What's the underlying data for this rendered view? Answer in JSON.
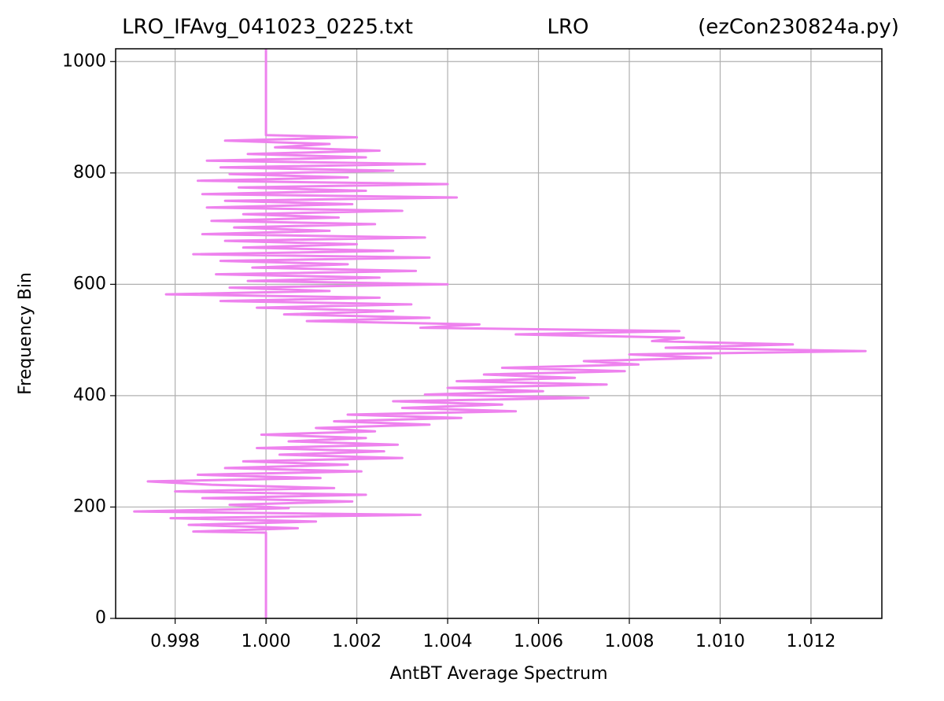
{
  "chart_data": {
    "type": "line",
    "orientation": "horizontal",
    "title_parts": [
      "LRO_IFAvg_041023_0225.txt",
      "LRO",
      "(ezCon230824a.py)"
    ],
    "xlabel": "AntBT Average Spectrum",
    "ylabel": "Frequency Bin",
    "xlim": [
      0.99669,
      1.01356
    ],
    "ylim": [
      0,
      1023
    ],
    "xticks": [
      0.998,
      {
        "value": 1.0,
        "label": "1.000"
      },
      1.002,
      1.004,
      1.006,
      1.008,
      {
        "value": 1.01,
        "label": "1.010"
      },
      1.012
    ],
    "yticks": [
      0,
      200,
      400,
      600,
      800,
      1000
    ],
    "grid": true,
    "y": [
      0,
      154,
      156,
      162,
      168,
      174,
      180,
      186,
      192,
      198,
      204,
      210,
      216,
      222,
      228,
      234,
      240,
      246,
      252,
      258,
      264,
      270,
      276,
      282,
      288,
      294,
      300,
      306,
      312,
      318,
      324,
      330,
      336,
      342,
      348,
      354,
      360,
      366,
      372,
      378,
      384,
      390,
      396,
      402,
      408,
      414,
      420,
      426,
      432,
      438,
      444,
      450,
      456,
      462,
      468,
      474,
      480,
      486,
      492,
      498,
      504,
      510,
      516,
      522,
      528,
      534,
      540,
      546,
      552,
      558,
      564,
      570,
      576,
      582,
      588,
      594,
      600,
      606,
      612,
      618,
      624,
      630,
      636,
      642,
      648,
      654,
      660,
      666,
      672,
      678,
      684,
      690,
      696,
      702,
      708,
      714,
      720,
      726,
      732,
      738,
      744,
      750,
      756,
      762,
      768,
      774,
      780,
      786,
      792,
      798,
      804,
      810,
      816,
      822,
      828,
      834,
      840,
      846,
      852,
      858,
      864,
      868,
      1023
    ],
    "series": [
      {
        "color": "#ee82ee",
        "values": [
          1.0,
          1.0,
          0.9984,
          1.0007,
          0.9983,
          1.0011,
          0.9979,
          1.0034,
          0.9971,
          1.0005,
          0.9992,
          1.0019,
          0.9986,
          1.0022,
          0.998,
          1.0015,
          0.9988,
          0.9974,
          1.0012,
          0.9985,
          1.0021,
          0.9991,
          1.0018,
          0.9995,
          1.003,
          1.0003,
          1.0026,
          0.9998,
          1.0029,
          1.0005,
          1.0022,
          0.9999,
          1.0024,
          1.0011,
          1.0036,
          1.0015,
          1.0043,
          1.0018,
          1.0055,
          1.003,
          1.0052,
          1.0028,
          1.0071,
          1.0035,
          1.0061,
          1.004,
          1.0075,
          1.0042,
          1.0068,
          1.0048,
          1.0079,
          1.0052,
          1.0082,
          1.007,
          1.0098,
          1.008,
          1.0132,
          1.0088,
          1.0116,
          1.0085,
          1.0092,
          1.0055,
          1.0091,
          1.0034,
          1.0047,
          1.0009,
          1.0036,
          1.0004,
          1.0028,
          0.9998,
          1.0032,
          0.999,
          1.0025,
          0.9978,
          1.0014,
          0.9992,
          1.004,
          0.9996,
          1.0025,
          0.9989,
          1.0033,
          0.9997,
          1.0018,
          0.999,
          1.0036,
          0.9984,
          1.0028,
          0.9995,
          1.002,
          0.9991,
          1.0035,
          0.9986,
          1.0014,
          0.9993,
          1.0024,
          0.9988,
          1.0016,
          0.9995,
          1.003,
          0.9987,
          1.0019,
          0.9991,
          1.0042,
          0.9986,
          1.0022,
          0.9994,
          1.004,
          0.9985,
          1.0018,
          0.9992,
          1.0028,
          0.999,
          1.0035,
          0.9987,
          1.0022,
          0.9996,
          1.0025,
          1.0002,
          1.0014,
          0.9991,
          1.002,
          1.0,
          1.0
        ]
      }
    ]
  }
}
